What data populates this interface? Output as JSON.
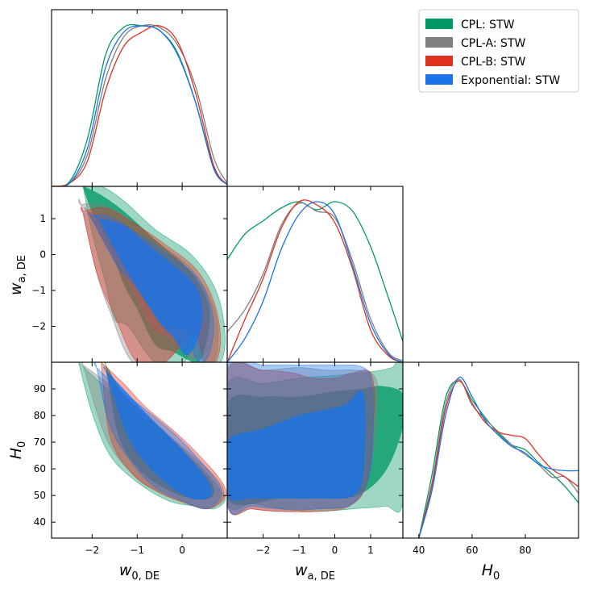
{
  "chart_data": {
    "type": "triangle-corner-plot",
    "parameters": [
      "w_{0,DE}",
      "w_{a,DE}",
      "H_0"
    ],
    "axis_labels": {
      "w0": {
        "main": "w",
        "sub": "0, DE"
      },
      "wa": {
        "main": "w",
        "sub": "a, DE"
      },
      "H0": {
        "main": "H",
        "sub": "0"
      }
    },
    "ranges": {
      "w0": [
        -2.9,
        1.0
      ],
      "wa": [
        -3.0,
        1.9
      ],
      "H0": [
        34,
        100
      ]
    },
    "ticks": {
      "w0": [
        -2,
        -1,
        0
      ],
      "wa": [
        -2,
        -1,
        0,
        1
      ],
      "H0_y": [
        40,
        50,
        60,
        70,
        80,
        90
      ],
      "H0_x": [
        40,
        60,
        80
      ]
    },
    "legend": [
      {
        "label": "CPL: STW",
        "color": "#009966"
      },
      {
        "label": "CPL-A: STW",
        "color": "#808080"
      },
      {
        "label": "CPL-B: STW",
        "color": "#e03020"
      },
      {
        "label": "Exponential: STW",
        "color": "#1a73e8"
      }
    ],
    "marginals": {
      "w0": [
        {
          "name": "CPL: STW",
          "x": [
            -2.9,
            -2.5,
            -2.1,
            -1.7,
            -1.3,
            -0.9,
            -0.5,
            -0.1,
            0.3,
            0.7,
            1.0
          ],
          "y": [
            0,
            0.03,
            0.3,
            0.82,
            0.99,
            1.0,
            0.97,
            0.82,
            0.52,
            0.12,
            0.01
          ]
        },
        {
          "name": "CPL-A: STW",
          "x": [
            -2.9,
            -2.5,
            -2.1,
            -1.7,
            -1.3,
            -0.9,
            -0.5,
            -0.1,
            0.3,
            0.7,
            1.0
          ],
          "y": [
            0,
            0.02,
            0.2,
            0.67,
            0.93,
            1.0,
            0.99,
            0.88,
            0.62,
            0.18,
            0.02
          ]
        },
        {
          "name": "CPL-B: STW",
          "x": [
            -2.9,
            -2.5,
            -2.1,
            -1.7,
            -1.3,
            -0.9,
            -0.5,
            -0.1,
            0.3,
            0.7,
            1.0
          ],
          "y": [
            0,
            0.02,
            0.16,
            0.6,
            0.87,
            0.96,
            1.0,
            0.9,
            0.58,
            0.13,
            0.01
          ]
        },
        {
          "name": "Exponential: STW",
          "x": [
            -2.9,
            -2.5,
            -2.1,
            -1.7,
            -1.3,
            -0.9,
            -0.5,
            -0.1,
            0.3,
            0.7,
            1.0
          ],
          "y": [
            0,
            0.02,
            0.24,
            0.74,
            0.96,
            1.0,
            0.97,
            0.83,
            0.52,
            0.11,
            0.01
          ]
        }
      ],
      "wa": [
        {
          "name": "CPL: STW",
          "x": [
            -3.0,
            -2.5,
            -2.0,
            -1.5,
            -1.0,
            -0.5,
            0.0,
            0.5,
            1.0,
            1.5,
            1.9
          ],
          "y": [
            0.64,
            0.8,
            0.88,
            0.96,
            1.0,
            0.95,
            1.0,
            0.94,
            0.72,
            0.4,
            0.13
          ]
        },
        {
          "name": "CPL-A: STW",
          "x": [
            -3.0,
            -2.5,
            -2.0,
            -1.5,
            -1.0,
            -0.5,
            0.0,
            0.5,
            1.0,
            1.5,
            1.9
          ],
          "y": [
            0.19,
            0.33,
            0.55,
            0.85,
            0.99,
            0.94,
            0.9,
            0.63,
            0.27,
            0.06,
            0.01
          ]
        },
        {
          "name": "CPL-B: STW",
          "x": [
            -3.0,
            -2.5,
            -2.0,
            -1.5,
            -1.0,
            -0.5,
            0.0,
            0.5,
            1.0,
            1.5,
            1.9
          ],
          "y": [
            0.0,
            0.27,
            0.52,
            0.83,
            1.0,
            0.98,
            0.87,
            0.58,
            0.2,
            0.04,
            0.0
          ]
        },
        {
          "name": "Exponential: STW",
          "x": [
            -3.0,
            -2.5,
            -2.0,
            -1.5,
            -1.0,
            -0.5,
            0.0,
            0.5,
            1.0,
            1.5,
            1.9
          ],
          "y": [
            0.0,
            0.15,
            0.38,
            0.7,
            0.92,
            1.0,
            0.92,
            0.6,
            0.24,
            0.05,
            0.0
          ]
        }
      ],
      "H0": [
        {
          "name": "CPL: STW",
          "x": [
            40,
            45,
            50,
            55,
            60,
            65,
            70,
            75,
            80,
            85,
            90,
            95,
            100
          ],
          "y": [
            0,
            0.4,
            0.87,
            0.98,
            0.86,
            0.75,
            0.65,
            0.58,
            0.55,
            0.47,
            0.4,
            0.32,
            0.22
          ]
        },
        {
          "name": "CPL-A: STW",
          "x": [
            40,
            45,
            50,
            55,
            60,
            65,
            70,
            75,
            80,
            85,
            90,
            95,
            100
          ],
          "y": [
            0,
            0.35,
            0.83,
            0.99,
            0.83,
            0.74,
            0.66,
            0.58,
            0.52,
            0.46,
            0.38,
            0.38,
            0.28
          ]
        },
        {
          "name": "CPL-B: STW",
          "x": [
            40,
            45,
            50,
            55,
            60,
            65,
            70,
            75,
            80,
            85,
            90,
            95,
            100
          ],
          "y": [
            0,
            0.33,
            0.8,
            0.98,
            0.84,
            0.72,
            0.66,
            0.64,
            0.62,
            0.52,
            0.43,
            0.38,
            0.32
          ]
        },
        {
          "name": "Exponential: STW",
          "x": [
            40,
            45,
            50,
            55,
            60,
            65,
            70,
            75,
            80,
            85,
            90,
            95,
            100
          ],
          "y": [
            0,
            0.3,
            0.76,
            1.0,
            0.88,
            0.73,
            0.64,
            0.57,
            0.53,
            0.46,
            0.43,
            0.42,
            0.42
          ]
        }
      ]
    },
    "contours_2d": {
      "w0_wa": [
        {
          "name": "CPL: STW",
          "level": "95%",
          "x": [
            -2.2,
            -1.8,
            -1.3,
            -0.6,
            0.2,
            0.75,
            0.95,
            0.85,
            0.45,
            0.3,
            0.05,
            -0.6,
            -1.2,
            -1.5,
            -1.7,
            -2.0,
            -2.2
          ],
          "y": [
            1.9,
            1.9,
            1.5,
            0.7,
            0.0,
            -1.0,
            -2.2,
            -3.0,
            -3.0,
            -2.0,
            -3.0,
            -3.0,
            -2.0,
            -1.8,
            -0.8,
            0.6,
            1.9
          ]
        },
        {
          "name": "CPL: STW",
          "level": "68%",
          "x": [
            -2.2,
            -1.8,
            -1.3,
            -0.6,
            0.2,
            0.6,
            0.5,
            0.3,
            -0.2,
            -0.6,
            -1.0,
            -1.3,
            -1.6,
            -2.0,
            -2.2
          ],
          "y": [
            1.9,
            1.65,
            1.2,
            0.4,
            -0.5,
            -1.5,
            -2.6,
            -3.0,
            -2.7,
            -2.5,
            -1.5,
            -0.8,
            0.2,
            1.2,
            1.9
          ]
        },
        {
          "name": "CPL-A: STW",
          "level": "95%",
          "x": [
            -2.25,
            -1.8,
            -1.2,
            -0.5,
            0.2,
            0.65,
            0.8,
            0.7,
            0.4,
            0.2,
            -0.4,
            -1.1,
            -1.6,
            -1.9,
            -2.25
          ],
          "y": [
            1.4,
            1.4,
            1.0,
            0.3,
            -0.4,
            -1.3,
            -2.2,
            -3.0,
            -3.0,
            -2.3,
            -3.0,
            -3.0,
            -1.6,
            -0.5,
            1.4
          ]
        },
        {
          "name": "CPL-A: STW",
          "level": "68%",
          "x": [
            -2.1,
            -1.6,
            -1.0,
            -0.3,
            0.3,
            0.55,
            0.45,
            0.2,
            -0.3,
            -0.7,
            -1.1,
            -1.5,
            -2.1
          ],
          "y": [
            1.2,
            1.0,
            0.5,
            -0.2,
            -0.9,
            -1.8,
            -2.6,
            -2.9,
            -2.3,
            -2.0,
            -1.0,
            -0.2,
            1.2
          ]
        },
        {
          "name": "CPL-B: STW",
          "level": "95%",
          "x": [
            -2.2,
            -1.7,
            -1.1,
            -0.4,
            0.3,
            0.7,
            0.85,
            0.75,
            0.5,
            0.25,
            -0.4,
            -1.0,
            -1.5,
            -1.9,
            -2.2
          ],
          "y": [
            1.2,
            1.3,
            0.9,
            0.3,
            -0.4,
            -1.3,
            -2.3,
            -3.0,
            -3.0,
            -2.2,
            -3.0,
            -3.0,
            -1.7,
            -0.5,
            1.2
          ]
        },
        {
          "name": "Exponential: STW",
          "level": "95%",
          "x": [
            -2.05,
            -1.6,
            -1.0,
            -0.3,
            0.3,
            0.6,
            0.7,
            0.55,
            0.3,
            0.1,
            -0.3,
            -0.7,
            -1.1,
            -1.4,
            -1.75,
            -2.05
          ],
          "y": [
            1.1,
            1.05,
            0.6,
            0.0,
            -0.6,
            -1.3,
            -2.1,
            -2.9,
            -2.9,
            -2.1,
            -2.0,
            -1.5,
            -0.8,
            -0.4,
            0.4,
            1.1
          ]
        },
        {
          "name": "Exponential: STW",
          "level": "68%",
          "x": [
            -1.85,
            -1.3,
            -0.8,
            -0.2,
            0.3,
            0.45,
            0.35,
            0.1,
            -0.2,
            -0.5,
            -0.9,
            -1.3,
            -1.85
          ],
          "y": [
            1.0,
            0.8,
            0.3,
            -0.3,
            -0.9,
            -1.6,
            -2.3,
            -2.8,
            -2.3,
            -1.9,
            -1.1,
            -0.3,
            1.0
          ]
        }
      ],
      "w0_H0": [
        {
          "name": "CPL: STW",
          "level": "95%",
          "x": [
            -2.3,
            -1.6,
            -1.0,
            -0.3,
            0.4,
            0.85,
            0.95,
            0.7,
            0.3,
            -0.3,
            -1.0,
            -1.6,
            -2.0,
            -2.3
          ],
          "y": [
            100,
            89,
            81,
            72,
            61,
            52,
            48,
            45,
            46,
            48,
            55,
            65,
            81,
            100
          ]
        },
        {
          "name": "CPL: STW",
          "level": "68%",
          "x": [
            -1.7,
            -1.3,
            -0.8,
            -0.2,
            0.4,
            0.7,
            0.6,
            0.2,
            -0.3,
            -0.9,
            -1.4,
            -1.7
          ],
          "y": [
            99,
            88,
            80,
            70,
            60,
            53,
            49,
            49,
            52,
            59,
            72,
            99
          ]
        },
        {
          "name": "CPL-A: STW",
          "level": "95%",
          "x": [
            -2.2,
            -1.5,
            -0.9,
            -0.2,
            0.5,
            0.9,
            0.85,
            0.55,
            0.1,
            -0.5,
            -1.1,
            -1.7,
            -2.2
          ],
          "y": [
            99,
            90,
            81,
            71,
            61,
            53,
            48,
            45,
            47,
            51,
            58,
            72,
            99
          ]
        },
        {
          "name": "CPL-B: STW",
          "level": "95%",
          "x": [
            -1.8,
            -1.3,
            -0.8,
            -0.1,
            0.6,
            0.95,
            0.9,
            0.55,
            0.1,
            -0.5,
            -1.1,
            -1.6,
            -1.8
          ],
          "y": [
            100,
            92,
            83,
            73,
            61,
            53,
            48,
            45,
            47,
            51,
            58,
            72,
            100
          ]
        },
        {
          "name": "Exponential: STW",
          "level": "95%",
          "x": [
            -1.9,
            -1.4,
            -0.8,
            -0.1,
            0.5,
            0.85,
            0.8,
            0.5,
            0.0,
            -0.6,
            -1.1,
            -1.6,
            -1.9
          ],
          "y": [
            98,
            90,
            82,
            72,
            61,
            53,
            48,
            45,
            48,
            53,
            62,
            76,
            98
          ]
        },
        {
          "name": "Exponential: STW",
          "level": "68%",
          "x": [
            -1.7,
            -1.2,
            -0.7,
            -0.1,
            0.45,
            0.65,
            0.55,
            0.2,
            -0.3,
            -0.8,
            -1.2,
            -1.5,
            -1.7
          ],
          "y": [
            97,
            88,
            79,
            69,
            58,
            52,
            49,
            49,
            54,
            62,
            72,
            86,
            97
          ]
        }
      ],
      "wa_H0": [
        {
          "name": "CPL: STW",
          "level": "95%",
          "x": [
            -3.0,
            -2.0,
            -1.0,
            0.0,
            0.7,
            1.3,
            1.6,
            1.9,
            1.9,
            1.4,
            0.5,
            -0.5,
            -1.5,
            -2.3,
            -3.0
          ],
          "y": [
            91,
            92,
            94,
            95,
            96,
            97,
            98,
            98,
            48,
            46,
            45,
            44,
            45,
            47,
            48
          ]
        },
        {
          "name": "CPL: STW",
          "level": "68%",
          "x": [
            -3.0,
            -2.0,
            -1.0,
            0.0,
            0.8,
            1.3,
            1.9,
            1.9,
            1.4,
            0.6,
            -0.5,
            -1.5,
            -3.0
          ],
          "y": [
            84,
            87,
            87,
            89,
            90,
            91,
            88,
            76,
            59,
            50,
            49,
            49,
            49
          ]
        },
        {
          "name": "CPL-A: STW",
          "level": "95%",
          "x": [
            -3.0,
            -2.0,
            -1.0,
            -0.2,
            0.6,
            1.1,
            1.2,
            1.0,
            0.5,
            -0.5,
            -1.5,
            -2.3,
            -3.0
          ],
          "y": [
            97,
            97,
            98,
            97,
            97,
            95,
            85,
            60,
            47,
            45,
            44,
            45,
            47
          ]
        },
        {
          "name": "CPL-B: STW",
          "level": "95%",
          "x": [
            -3.0,
            -2.0,
            -1.2,
            -0.6,
            0.0,
            0.5,
            1.0,
            1.1,
            0.9,
            0.4,
            -0.5,
            -1.5,
            -2.3,
            -3.0
          ],
          "y": [
            96,
            97,
            96,
            94,
            94,
            96,
            96,
            82,
            55,
            46,
            44,
            44,
            45,
            47
          ]
        },
        {
          "name": "Exponential: STW",
          "level": "95%",
          "x": [
            -3.0,
            -2.0,
            -1.0,
            0.0,
            0.8,
            1.05,
            1.0,
            0.5,
            -0.5,
            -1.5,
            -2.3,
            -3.0
          ],
          "y": [
            98,
            99,
            99,
            99,
            98,
            90,
            60,
            47,
            45,
            45,
            46,
            47
          ]
        },
        {
          "name": "Exponential: STW",
          "level": "68%",
          "x": [
            -3.0,
            -2.0,
            -1.0,
            -0.3,
            0.3,
            0.8,
            0.8,
            0.5,
            -0.5,
            -1.5,
            -2.3,
            -3.0
          ],
          "y": [
            70,
            75,
            80,
            82,
            84,
            88,
            60,
            50,
            49,
            49,
            49,
            50
          ]
        }
      ]
    }
  }
}
